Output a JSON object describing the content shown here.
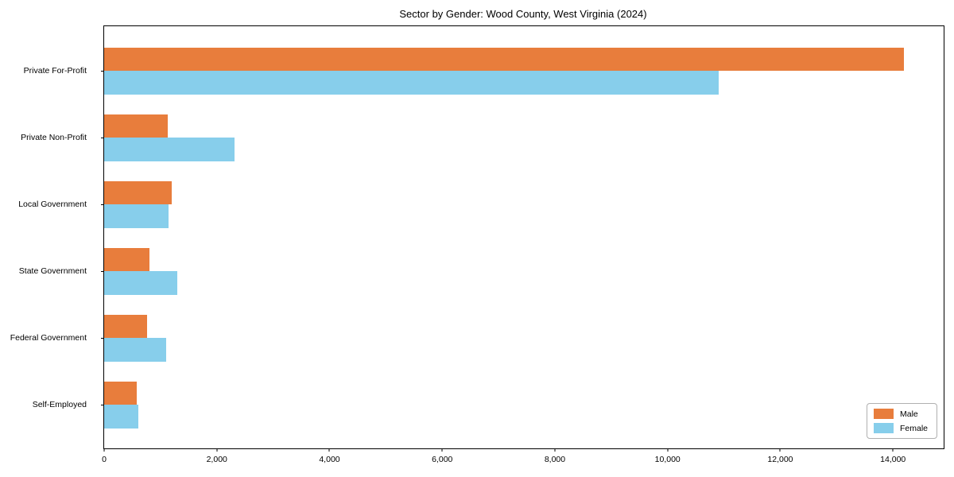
{
  "chart_data": {
    "type": "bar",
    "orientation": "horizontal",
    "title": "Sector by Gender: Wood County, West Virginia (2024)",
    "categories": [
      "Private For-Profit",
      "Private Non-Profit",
      "Local Government",
      "State Government",
      "Federal Government",
      "Self-Employed"
    ],
    "series": [
      {
        "name": "Male",
        "color": "#E87D3C",
        "values": [
          14200,
          1130,
          1200,
          810,
          760,
          580
        ]
      },
      {
        "name": "Female",
        "color": "#87CEEB",
        "values": [
          10900,
          2310,
          1140,
          1300,
          1100,
          600
        ]
      }
    ],
    "xlabel": "",
    "ylabel": "",
    "xlim": [
      0,
      14900
    ],
    "x_ticks": [
      {
        "value": 0,
        "label": "0"
      },
      {
        "value": 2000,
        "label": "2,000"
      },
      {
        "value": 4000,
        "label": "4,000"
      },
      {
        "value": 6000,
        "label": "6,000"
      },
      {
        "value": 8000,
        "label": "8,000"
      },
      {
        "value": 10000,
        "label": "10,000"
      },
      {
        "value": 12000,
        "label": "12,000"
      },
      {
        "value": 14000,
        "label": "14,000"
      }
    ],
    "grid": false,
    "legend_position": "lower right"
  }
}
